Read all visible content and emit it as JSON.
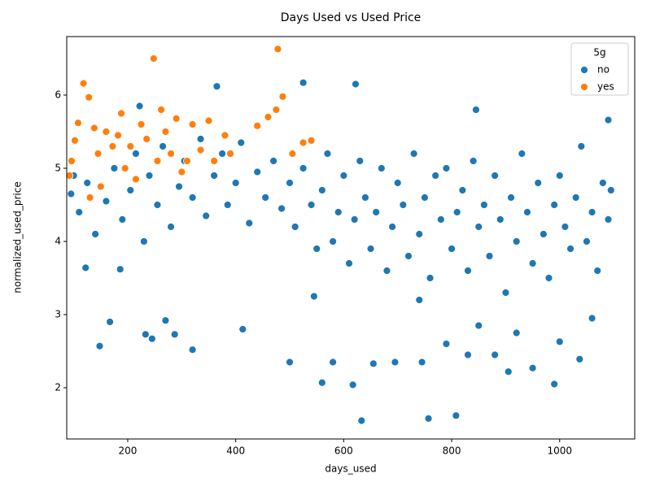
{
  "chart_data": {
    "type": "scatter",
    "title": "Days Used vs Used Price",
    "x_label": "days_used",
    "y_label": "normalized_used_price",
    "xlim": [
      87,
      1139
    ],
    "ylim": [
      1.3,
      6.8
    ],
    "xticks": [
      200,
      400,
      600,
      800,
      1000
    ],
    "yticks": [
      2,
      3,
      4,
      5,
      6
    ],
    "legend_title": "5g",
    "legend": "upper right",
    "series": [
      {
        "name": "no",
        "color": "#1f77b4",
        "x": [
          633,
          757,
          808,
          617,
          560,
          990,
          148,
          245,
          233,
          287,
          320,
          413,
          365,
          525,
          622,
          222,
          845,
          1090,
          167,
          270,
          500,
          905,
          1037,
          122,
          186,
          95,
          100,
          110,
          125,
          140,
          160,
          175,
          190,
          205,
          215,
          230,
          240,
          255,
          265,
          280,
          295,
          305,
          320,
          335,
          345,
          360,
          375,
          385,
          400,
          410,
          425,
          440,
          455,
          470,
          485,
          500,
          510,
          525,
          540,
          550,
          560,
          570,
          580,
          590,
          600,
          610,
          620,
          630,
          640,
          650,
          660,
          670,
          680,
          690,
          700,
          710,
          720,
          730,
          740,
          750,
          760,
          770,
          780,
          790,
          800,
          810,
          820,
          830,
          840,
          850,
          860,
          870,
          880,
          890,
          900,
          910,
          920,
          930,
          940,
          950,
          960,
          970,
          980,
          990,
          1000,
          1010,
          1020,
          1030,
          1040,
          1050,
          1060,
          1070,
          1080,
          1090,
          1095,
          545,
          580,
          655,
          695,
          745,
          790,
          830,
          880,
          950,
          1000,
          740,
          850,
          920,
          1060
        ],
        "values": [
          1.55,
          1.58,
          1.62,
          2.04,
          2.07,
          2.05,
          2.57,
          2.67,
          2.73,
          2.73,
          2.52,
          2.8,
          6.12,
          6.17,
          6.15,
          5.85,
          5.8,
          5.66,
          2.9,
          2.92,
          2.35,
          2.22,
          2.39,
          3.64,
          3.62,
          4.65,
          4.9,
          4.4,
          4.8,
          4.1,
          4.55,
          5.0,
          4.3,
          4.7,
          5.2,
          4.0,
          4.9,
          4.5,
          5.3,
          4.2,
          4.75,
          5.1,
          4.6,
          5.4,
          4.35,
          4.9,
          5.2,
          4.5,
          4.8,
          5.35,
          4.25,
          4.95,
          4.6,
          5.1,
          4.45,
          4.8,
          4.2,
          5.0,
          4.5,
          3.9,
          4.7,
          5.2,
          4.0,
          4.4,
          4.9,
          3.7,
          4.3,
          5.1,
          4.6,
          3.9,
          4.4,
          5.0,
          3.6,
          4.2,
          4.8,
          4.5,
          3.8,
          5.2,
          4.1,
          4.6,
          3.5,
          4.9,
          4.3,
          5.0,
          3.9,
          4.4,
          4.7,
          3.6,
          5.1,
          4.2,
          4.5,
          3.8,
          4.9,
          4.3,
          3.3,
          4.6,
          4.0,
          5.2,
          4.4,
          3.7,
          4.8,
          4.1,
          3.5,
          4.5,
          4.9,
          4.2,
          3.9,
          4.6,
          5.3,
          4.0,
          4.4,
          3.6,
          4.8,
          4.3,
          4.7,
          3.25,
          2.35,
          2.33,
          2.35,
          2.35,
          2.6,
          2.45,
          2.45,
          2.27,
          2.63,
          3.2,
          2.85,
          2.75,
          2.95
        ]
      },
      {
        "name": "yes",
        "color": "#ff7f0e",
        "x": [
          92,
          96,
          102,
          108,
          118,
          128,
          130,
          138,
          145,
          150,
          160,
          172,
          182,
          188,
          195,
          205,
          215,
          225,
          235,
          248,
          255,
          262,
          270,
          280,
          290,
          300,
          310,
          320,
          335,
          350,
          360,
          380,
          390,
          440,
          460,
          475,
          478,
          487,
          505,
          525,
          540
        ],
        "values": [
          4.9,
          5.1,
          5.38,
          5.62,
          6.16,
          5.97,
          4.6,
          5.55,
          5.2,
          4.75,
          5.5,
          5.3,
          5.45,
          5.75,
          5.0,
          5.3,
          4.85,
          5.6,
          5.4,
          6.5,
          5.1,
          5.8,
          5.5,
          5.2,
          5.68,
          4.95,
          5.1,
          5.6,
          5.25,
          5.65,
          5.1,
          5.45,
          5.2,
          5.58,
          5.7,
          5.8,
          6.63,
          5.98,
          5.2,
          5.35,
          5.38
        ]
      }
    ]
  }
}
